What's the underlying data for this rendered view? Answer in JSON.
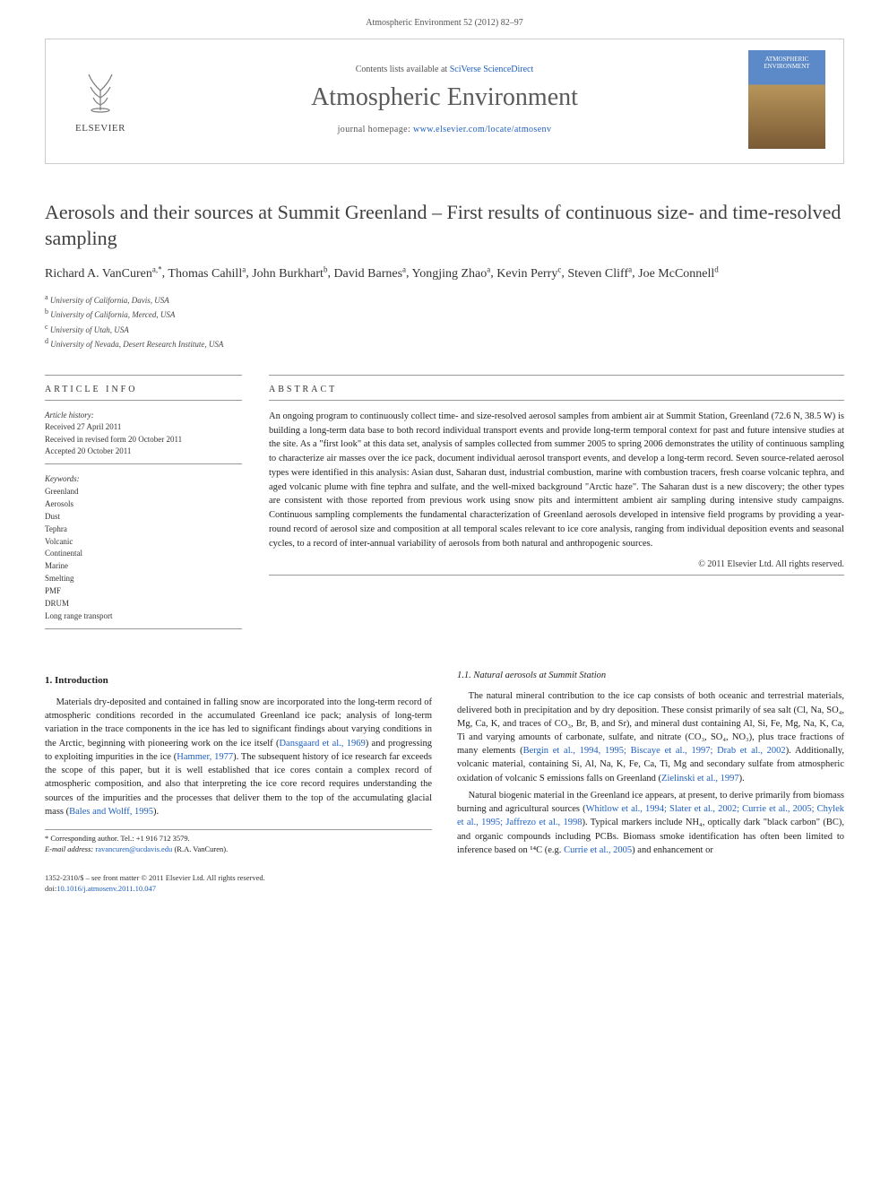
{
  "citation": "Atmospheric Environment 52 (2012) 82–97",
  "header": {
    "publisher": "ELSEVIER",
    "contents_prefix": "Contents lists available at ",
    "contents_link": "SciVerse ScienceDirect",
    "journal": "Atmospheric Environment",
    "homepage_prefix": "journal homepage: ",
    "homepage_url": "www.elsevier.com/locate/atmosenv",
    "cover_label_1": "ATMOSPHERIC",
    "cover_label_2": "ENVIRONMENT"
  },
  "title": "Aerosols and their sources at Summit Greenland – First results of continuous size- and time-resolved sampling",
  "authors_html": "Richard A. VanCuren",
  "authors": [
    {
      "name": "Richard A. VanCuren",
      "aff": "a,*"
    },
    {
      "name": "Thomas Cahill",
      "aff": "a"
    },
    {
      "name": "John Burkhart",
      "aff": "b"
    },
    {
      "name": "David Barnes",
      "aff": "a"
    },
    {
      "name": "Yongjing Zhao",
      "aff": "a"
    },
    {
      "name": "Kevin Perry",
      "aff": "c"
    },
    {
      "name": "Steven Cliff",
      "aff": "a"
    },
    {
      "name": "Joe McConnell",
      "aff": "d"
    }
  ],
  "affiliations": [
    {
      "sup": "a",
      "text": "University of California, Davis, USA"
    },
    {
      "sup": "b",
      "text": "University of California, Merced, USA"
    },
    {
      "sup": "c",
      "text": "University of Utah, USA"
    },
    {
      "sup": "d",
      "text": "University of Nevada, Desert Research Institute, USA"
    }
  ],
  "article_info": {
    "label": "ARTICLE INFO",
    "history_label": "Article history:",
    "received": "Received 27 April 2011",
    "revised": "Received in revised form 20 October 2011",
    "accepted": "Accepted 20 October 2011",
    "keywords_label": "Keywords:",
    "keywords": [
      "Greenland",
      "Aerosols",
      "Dust",
      "Tephra",
      "Volcanic",
      "Continental",
      "Marine",
      "Smelting",
      "PMF",
      "DRUM",
      "Long range transport"
    ]
  },
  "abstract": {
    "label": "ABSTRACT",
    "text": "An ongoing program to continuously collect time- and size-resolved aerosol samples from ambient air at Summit Station, Greenland (72.6 N, 38.5 W) is building a long-term data base to both record individual transport events and provide long-term temporal context for past and future intensive studies at the site. As a \"first look\" at this data set, analysis of samples collected from summer 2005 to spring 2006 demonstrates the utility of continuous sampling to characterize air masses over the ice pack, document individual aerosol transport events, and develop a long-term record. Seven source-related aerosol types were identified in this analysis: Asian dust, Saharan dust, industrial combustion, marine with combustion tracers, fresh coarse volcanic tephra, and aged volcanic plume with fine tephra and sulfate, and the well-mixed background \"Arctic haze\". The Saharan dust is a new discovery; the other types are consistent with those reported from previous work using snow pits and intermittent ambient air sampling during intensive study campaigns. Continuous sampling complements the fundamental characterization of Greenland aerosols developed in intensive field programs by providing a year-round record of aerosol size and composition at all temporal scales relevant to ice core analysis, ranging from individual deposition events and seasonal cycles, to a record of inter-annual variability of aerosols from both natural and anthropogenic sources.",
    "copyright": "© 2011 Elsevier Ltd. All rights reserved."
  },
  "body": {
    "h1": "1. Introduction",
    "p1a": "Materials dry-deposited and contained in falling snow are incorporated into the long-term record of atmospheric conditions recorded in the accumulated Greenland ice pack; analysis of long-term variation in the trace components in the ice has led to significant findings about varying conditions in the Arctic, beginning with pioneering work on the ice itself (",
    "c1": "Dansgaard et al., 1969",
    "p1b": ") and progressing to exploiting impurities in the ice (",
    "c2": "Hammer, 1977",
    "p1c": "). The subsequent history of ice research far exceeds the scope of this paper, but it is well established that ice cores contain a complex record of atmospheric composition, and also that interpreting the ice core record requires understanding the sources of the impurities and the processes that deliver them to the top of the accumulating glacial mass (",
    "c3": "Bales and Wolff, 1995",
    "p1d": ").",
    "h2": "1.1. Natural aerosols at Summit Station",
    "p2a": "The natural mineral contribution to the ice cap consists of both oceanic and terrestrial materials, delivered both in precipitation and by dry deposition. These consist primarily of sea salt (Cl, Na, SO₄, Mg, Ca, K, and traces of CO₃, Br, B, and Sr), and mineral dust containing Al, Si, Fe, Mg, Na, K, Ca, Ti and varying amounts of carbonate, sulfate, and nitrate (CO₃, SO₄, NO₃), plus trace fractions of many elements (",
    "c4": "Bergin et al., 1994, 1995; Biscaye et al., 1997; Drab et al., 2002",
    "p2b": "). Additionally, volcanic material, containing Si, Al, Na, K, Fe, Ca, Ti, Mg and secondary sulfate from atmospheric oxidation of volcanic S emissions falls on Greenland (",
    "c5": "Zielinski et al., 1997",
    "p2c": ").",
    "p3a": "Natural biogenic material in the Greenland ice appears, at present, to derive primarily from biomass burning and agricultural sources (",
    "c6": "Whitlow et al., 1994; Slater et al., 2002; Currie et al., 2005; Chylek et al., 1995; Jaffrezo et al., 1998",
    "p3b": "). Typical markers include NH₄, optically dark \"black carbon\" (BC), and organic compounds including PCBs. Biomass smoke identification has often been limited to inference based on ¹⁴C (e.g. ",
    "c7": "Currie et al., 2005",
    "p3c": ") and enhancement or"
  },
  "footnote": {
    "corr": "* Corresponding author. Tel.: +1 916 712 3579.",
    "email_label": "E-mail address:",
    "email": "ravancuren@ucdavis.edu",
    "email_suffix": "(R.A. VanCuren)."
  },
  "footer": {
    "front": "1352-2310/$ – see front matter © 2011 Elsevier Ltd. All rights reserved.",
    "doi_label": "doi:",
    "doi": "10.1016/j.atmosenv.2011.10.047"
  },
  "colors": {
    "link": "#2060c0",
    "heading": "#404040",
    "rule": "#999999"
  }
}
